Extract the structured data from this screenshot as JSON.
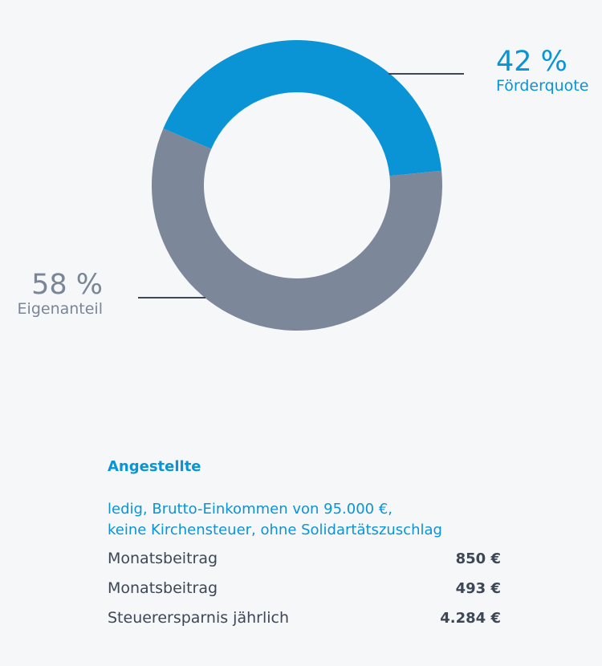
{
  "chart_data": {
    "type": "pie",
    "variant": "donut",
    "slices": [
      {
        "label": "Förderquote",
        "value": 42,
        "display": "42 %",
        "color": "#0a94d6"
      },
      {
        "label": "Eigenanteil",
        "value": 58,
        "display": "58 %",
        "color": "#7c879a"
      }
    ],
    "leader_line_color": "#3d4755"
  },
  "info": {
    "heading": "Angestellte",
    "description_lines": [
      "ledig, Brutto-Einkommen von 95.000 €,",
      "keine Kirchensteuer, ohne Solidartätszuschlag"
    ],
    "rows": [
      {
        "label": "Monatsbeitrag",
        "value": "850 €"
      },
      {
        "label": "Monatsbeitrag",
        "value": "493 €"
      },
      {
        "label": "Steuerersparnis jährlich",
        "value": "4.284 €"
      }
    ]
  }
}
